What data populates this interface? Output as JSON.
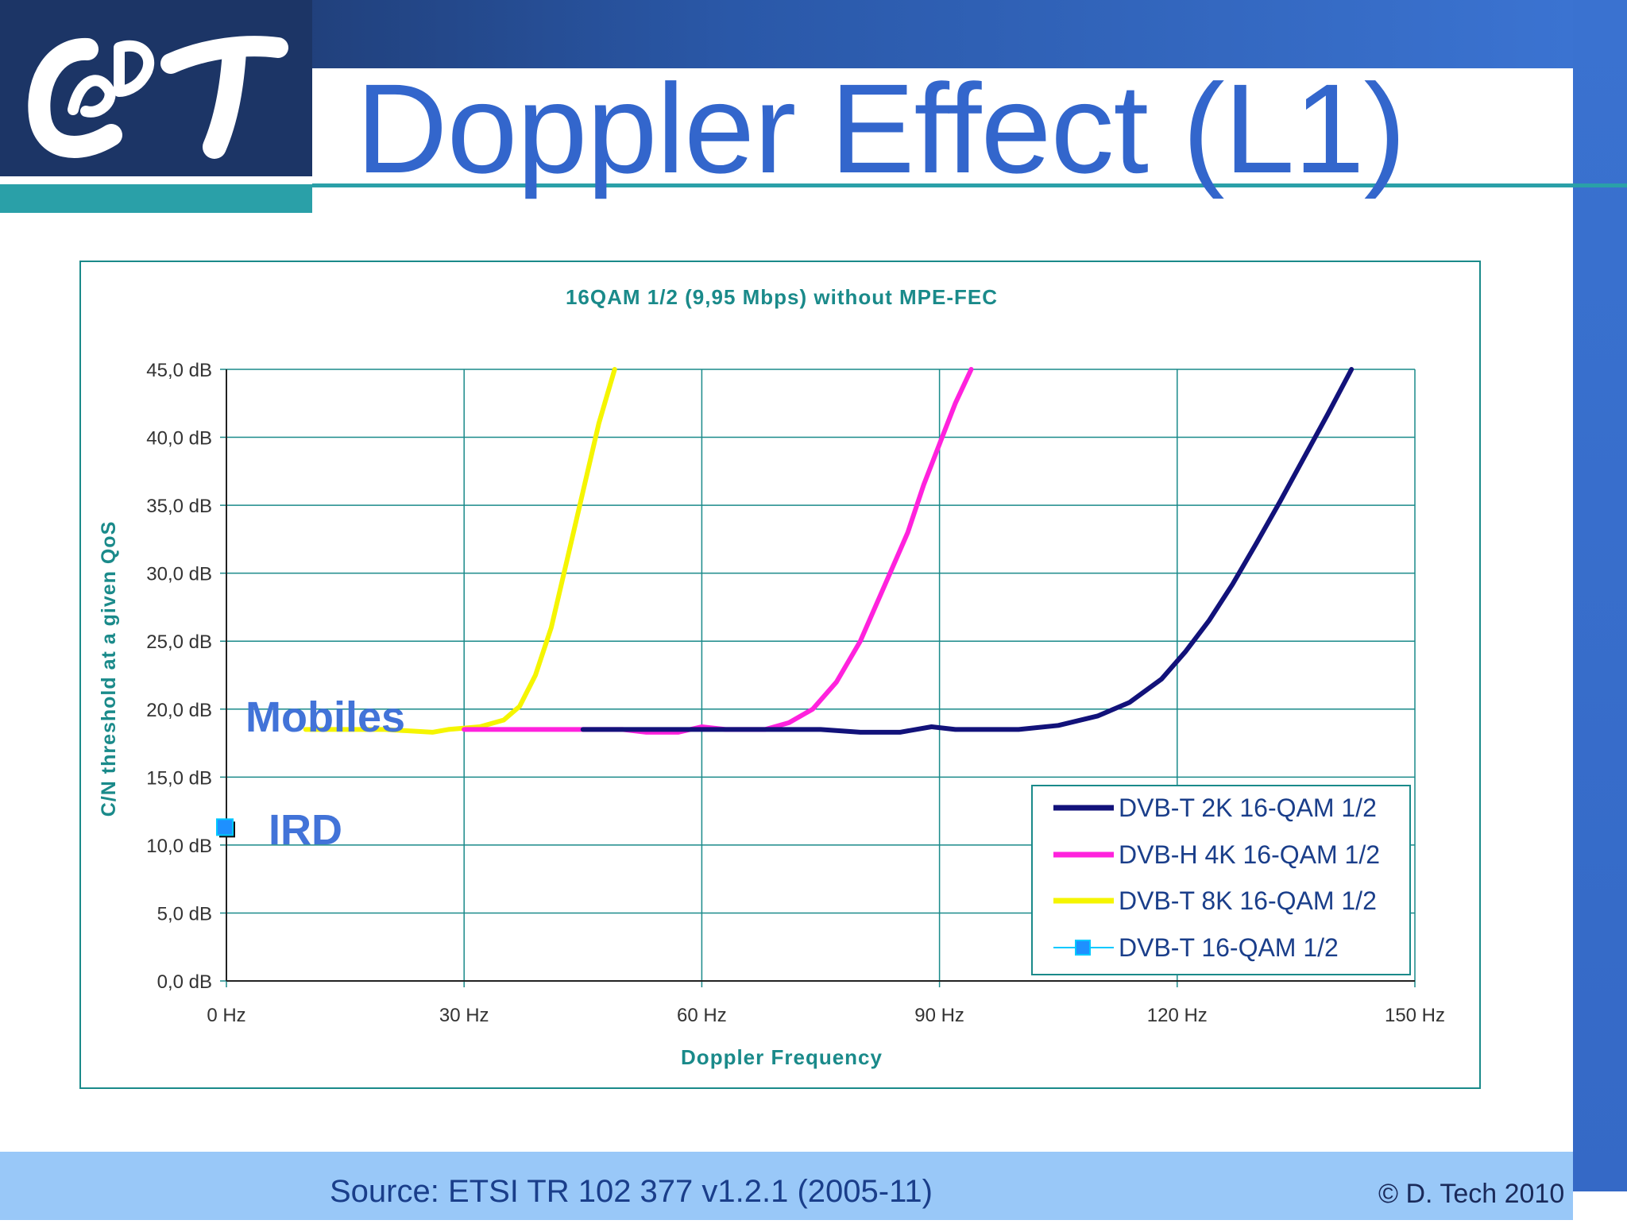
{
  "slide": {
    "title": "Doppler Effect (L1)",
    "source": "Source: ETSI TR 102 377 v1.2.1 (2005-11)",
    "copyright": "© D. Tech 2010",
    "logo_text": "CADT"
  },
  "annotations": {
    "mobiles": "Mobiles",
    "ird": "IRD"
  },
  "colors": {
    "title": "#3366cc",
    "teal_accent": "#2aa0a8",
    "chart_axis_text": "#1a8a8a",
    "grid": "#1a8a8a"
  },
  "chart_data": {
    "type": "line",
    "title": "16QAM 1/2 (9,95 Mbps) without MPE-FEC",
    "xlabel": "Doppler Frequency",
    "ylabel": "C/N threshold at a given QoS",
    "xlim": [
      0,
      150
    ],
    "ylim": [
      0,
      45
    ],
    "x_ticks": [
      0,
      30,
      60,
      90,
      120,
      150
    ],
    "x_tick_labels": [
      "0 Hz",
      "30 Hz",
      "60 Hz",
      "90 Hz",
      "120 Hz",
      "150 Hz"
    ],
    "y_ticks": [
      0,
      5,
      10,
      15,
      20,
      25,
      30,
      35,
      40,
      45
    ],
    "y_tick_labels": [
      "0,0 dB",
      "5,0 dB",
      "10,0 dB",
      "15,0 dB",
      "20,0 dB",
      "25,0 dB",
      "30,0 dB",
      "35,0 dB",
      "40,0 dB",
      "45,0 dB"
    ],
    "grid": true,
    "legend_position": "bottom-right",
    "series": [
      {
        "name": "DVB-T 2K 16-QAM 1/2",
        "color": "#12127a",
        "marker": "none",
        "points": [
          [
            45,
            18.5
          ],
          [
            60,
            18.5
          ],
          [
            75,
            18.5
          ],
          [
            80,
            18.3
          ],
          [
            85,
            18.3
          ],
          [
            89,
            18.7
          ],
          [
            92,
            18.5
          ],
          [
            100,
            18.5
          ],
          [
            105,
            18.8
          ],
          [
            110,
            19.5
          ],
          [
            114,
            20.5
          ],
          [
            118,
            22.2
          ],
          [
            121,
            24.2
          ],
          [
            124,
            26.5
          ],
          [
            127,
            29.2
          ],
          [
            130,
            32.2
          ],
          [
            133,
            35.3
          ],
          [
            136,
            38.5
          ],
          [
            139,
            41.7
          ],
          [
            142,
            45.0
          ]
        ]
      },
      {
        "name": "DVB-H 4K 16-QAM 1/2",
        "color": "#ff22dd",
        "marker": "none",
        "points": [
          [
            30,
            18.5
          ],
          [
            40,
            18.5
          ],
          [
            50,
            18.5
          ],
          [
            53,
            18.3
          ],
          [
            57,
            18.3
          ],
          [
            60,
            18.7
          ],
          [
            63,
            18.5
          ],
          [
            68,
            18.5
          ],
          [
            71,
            19.0
          ],
          [
            74,
            20.0
          ],
          [
            77,
            22.0
          ],
          [
            80,
            25.0
          ],
          [
            83,
            29.0
          ],
          [
            86,
            33.0
          ],
          [
            88,
            36.5
          ],
          [
            90,
            39.5
          ],
          [
            92,
            42.5
          ],
          [
            94,
            45.0
          ]
        ]
      },
      {
        "name": "DVB-T 8K 16-QAM 1/2",
        "color": "#f5f500",
        "marker": "none",
        "points": [
          [
            10,
            18.5
          ],
          [
            20,
            18.5
          ],
          [
            26,
            18.3
          ],
          [
            28,
            18.5
          ],
          [
            32,
            18.7
          ],
          [
            35,
            19.2
          ],
          [
            37,
            20.2
          ],
          [
            39,
            22.5
          ],
          [
            41,
            26.0
          ],
          [
            43,
            31.0
          ],
          [
            45,
            36.0
          ],
          [
            47,
            41.0
          ],
          [
            49,
            45.0
          ]
        ]
      },
      {
        "name": "DVB-T  16-QAM 1/2",
        "color": "#1e90ff",
        "marker": "square",
        "points": [
          [
            0,
            11.2
          ]
        ]
      }
    ]
  }
}
